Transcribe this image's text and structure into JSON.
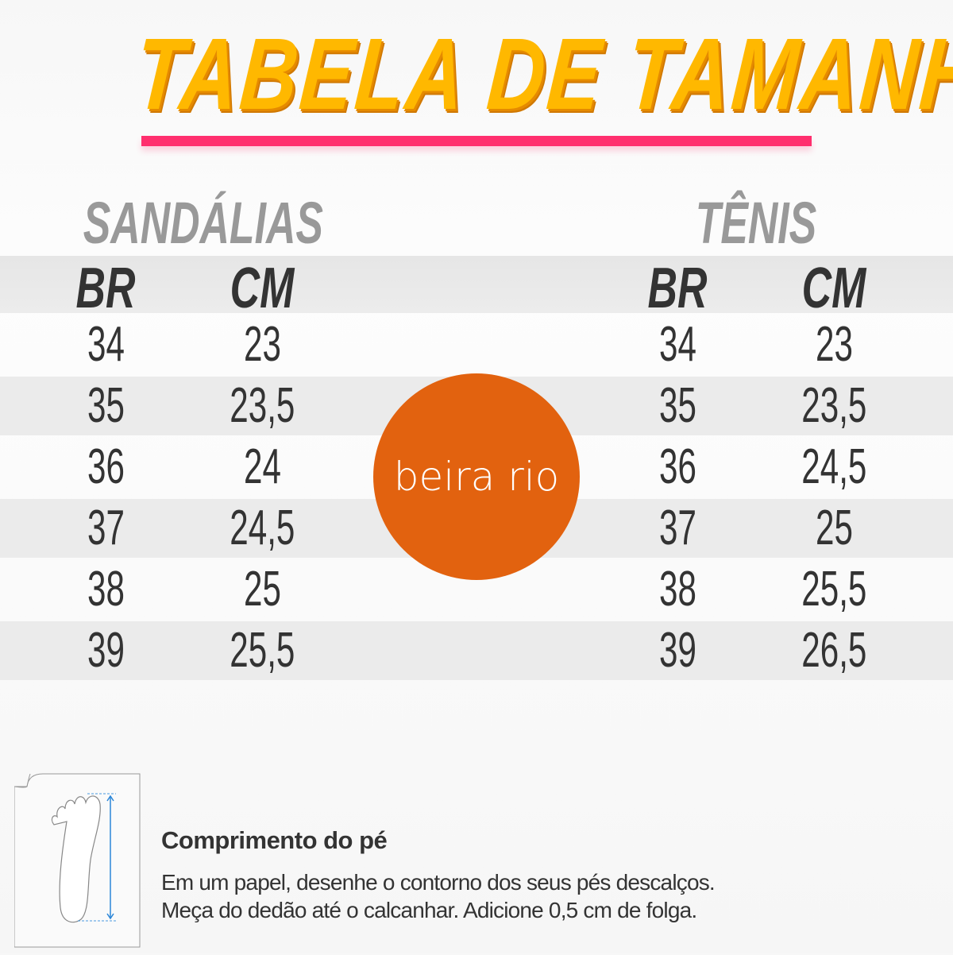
{
  "title": "TABELA DE TAMANHOS",
  "colors": {
    "title": "#FFB800",
    "underline": "#FF2F6E",
    "logo": "#E2620F",
    "category": "#999999",
    "text": "#333333"
  },
  "sandalias": {
    "label": "SANDÁLIAS",
    "headers": [
      "BR",
      "CM"
    ],
    "rows": [
      [
        "34",
        "23"
      ],
      [
        "35",
        "23,5"
      ],
      [
        "36",
        "24"
      ],
      [
        "37",
        "24,5"
      ],
      [
        "38",
        "25"
      ],
      [
        "39",
        "25,5"
      ]
    ]
  },
  "tenis": {
    "label": "TÊNIS",
    "headers": [
      "BR",
      "CM"
    ],
    "rows": [
      [
        "34",
        "23"
      ],
      [
        "35",
        "23,5"
      ],
      [
        "36",
        "24,5"
      ],
      [
        "37",
        "25"
      ],
      [
        "38",
        "25,5"
      ],
      [
        "39",
        "26,5"
      ]
    ]
  },
  "logo": {
    "text": "beira rio"
  },
  "footer": {
    "icon": "foot-measure-icon",
    "title": "Comprimento do pé",
    "lines": [
      "Em um papel, desenhe o contorno dos seus pés descalços.",
      "Meça do dedão até o calcanhar. Adicione 0,5 cm de folga."
    ]
  }
}
